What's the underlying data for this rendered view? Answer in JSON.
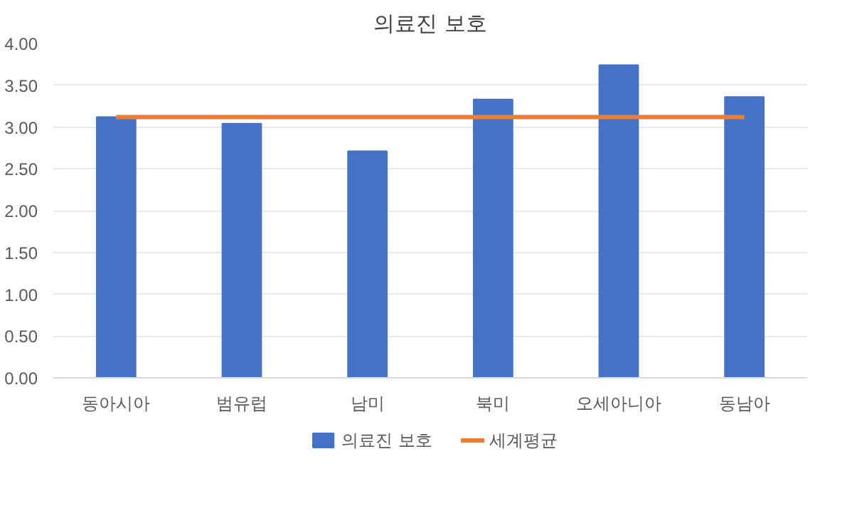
{
  "chart_data": {
    "type": "bar",
    "title": "의료진 보호",
    "categories": [
      "동아시아",
      "범유럽",
      "남미",
      "북미",
      "오세아니아",
      "동남아"
    ],
    "series": [
      {
        "name": "의료진 보호",
        "color": "#4472c4",
        "values": [
          3.12,
          3.04,
          2.71,
          3.33,
          3.74,
          3.36
        ]
      },
      {
        "name": "세계평균",
        "type": "line",
        "color": "#ed7d31",
        "values": [
          3.12,
          3.12,
          3.12,
          3.12,
          3.12,
          3.12
        ]
      }
    ],
    "ylim": [
      0,
      4
    ],
    "yticks": [
      {
        "value": 0,
        "label": "0.00"
      },
      {
        "value": 0.5,
        "label": "0.50"
      },
      {
        "value": 1,
        "label": "1.00"
      },
      {
        "value": 1.5,
        "label": "1.50"
      },
      {
        "value": 2,
        "label": "2.00"
      },
      {
        "value": 2.5,
        "label": "2.50"
      },
      {
        "value": 3,
        "label": "3.00"
      },
      {
        "value": 3.5,
        "label": "3.50"
      },
      {
        "value": 4,
        "label": "4.00"
      }
    ],
    "grid": "y",
    "legend": "bottom"
  }
}
